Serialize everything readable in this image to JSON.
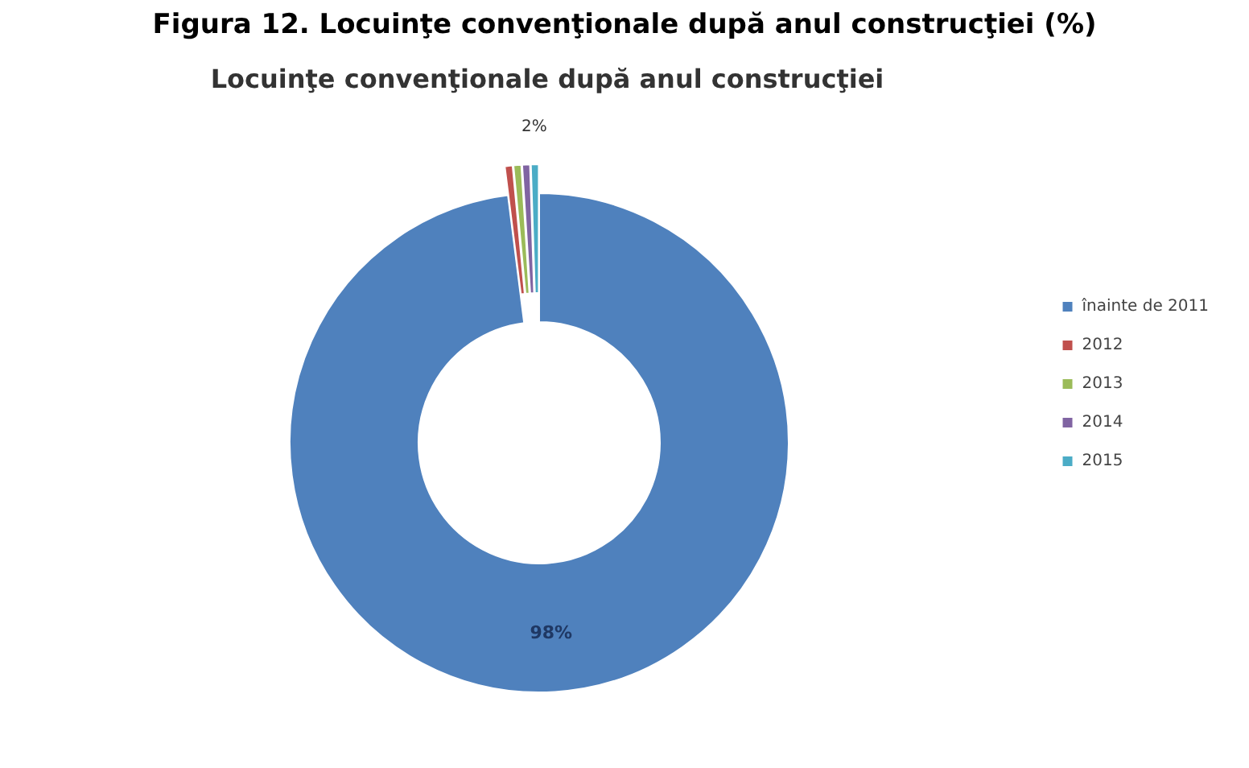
{
  "chart_data": {
    "type": "donut",
    "title": "Figura 12. Locuinţe convenţionale după anul construcţiei (%)",
    "subtitle": "Locuinţe convenţionale după anul construcţiei",
    "categories": [
      "înainte de 2011",
      "2012",
      "2013",
      "2014",
      "2015"
    ],
    "values": [
      98,
      0.5,
      0.5,
      0.5,
      0.5
    ],
    "colors": [
      "#4f81bd",
      "#c0504d",
      "#9bbb59",
      "#8064a2",
      "#4bacc6"
    ],
    "value_labels": [
      "98%",
      null,
      null,
      null,
      null
    ],
    "annotations": [
      "2%"
    ],
    "legend": "right"
  }
}
